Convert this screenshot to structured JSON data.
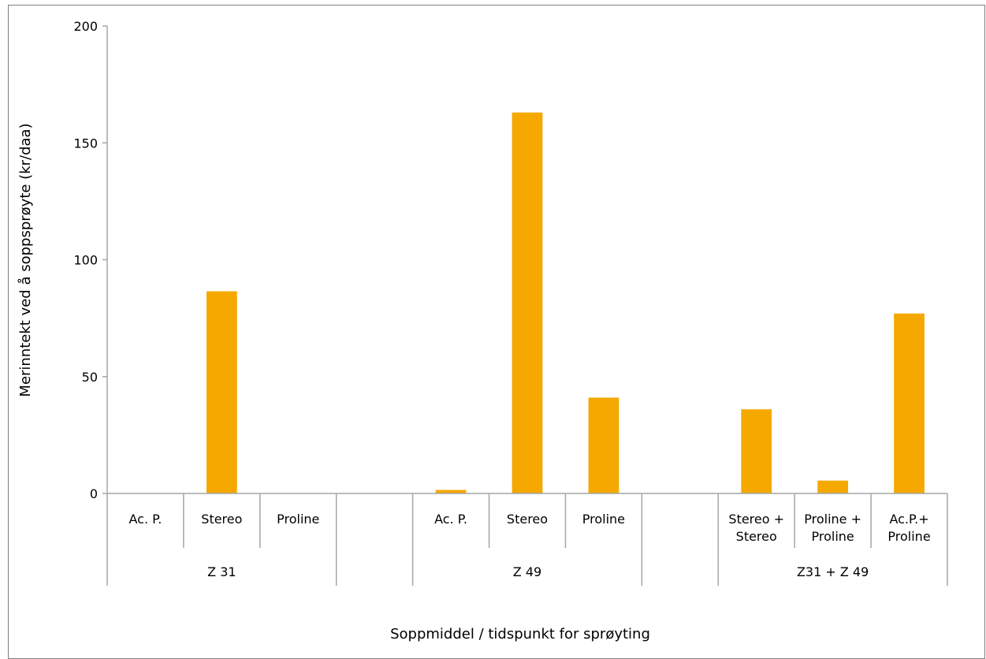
{
  "chart_data": {
    "type": "bar",
    "title": "",
    "ylabel": "Merinntekt ved å soppsprøyte (kr/daa)",
    "xlabel": "Soppmiddel / tidspunkt for sprøyting",
    "ylim": [
      0,
      200
    ],
    "yticks": [
      "0",
      "50",
      "100",
      "150",
      "200"
    ],
    "bar_color": "#f5a800",
    "axis_color": "#a6a6a6",
    "groups": [
      {
        "name": "Z 31",
        "categories": [
          [
            "Ac. P."
          ],
          [
            "Stereo"
          ],
          [
            "Proline"
          ]
        ],
        "values": [
          0,
          86.5,
          0
        ]
      },
      {
        "name": "",
        "categories": [
          [
            ""
          ]
        ],
        "values": [
          0
        ]
      },
      {
        "name": "Z 49",
        "categories": [
          [
            "Ac. P."
          ],
          [
            "Stereo"
          ],
          [
            "Proline"
          ]
        ],
        "values": [
          1.5,
          163,
          41
        ]
      },
      {
        "name": "",
        "categories": [
          [
            ""
          ]
        ],
        "values": [
          0
        ]
      },
      {
        "name": "Z31 + Z 49",
        "categories": [
          [
            "Stereo +",
            "Stereo"
          ],
          [
            "Proline +",
            "Proline"
          ],
          [
            "Ac.P.+",
            "Proline"
          ]
        ],
        "values": [
          36,
          5.5,
          77
        ]
      }
    ]
  }
}
